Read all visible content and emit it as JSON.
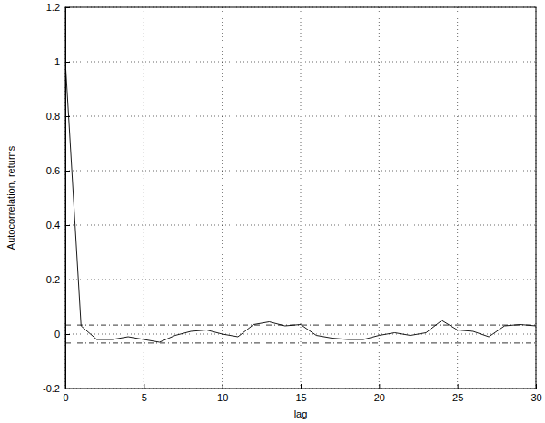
{
  "chart_data": {
    "type": "line",
    "xlabel": "lag",
    "ylabel": "Autocorrelation, returns",
    "x": [
      0,
      1,
      2,
      3,
      4,
      5,
      6,
      7,
      8,
      9,
      10,
      11,
      12,
      13,
      14,
      15,
      16,
      17,
      18,
      19,
      20,
      21,
      22,
      23,
      24,
      25,
      26,
      27,
      28,
      29,
      30
    ],
    "values": [
      1,
      0.03,
      -0.02,
      -0.02,
      -0.01,
      -0.02,
      -0.03,
      -0.005,
      0.01,
      0.015,
      0.0,
      -0.01,
      0.035,
      0.045,
      0.03,
      0.035,
      -0.005,
      -0.015,
      -0.02,
      -0.02,
      -0.005,
      0.005,
      -0.005,
      0.005,
      0.05,
      0.015,
      0.01,
      -0.01,
      0.03,
      0.035,
      0.03
    ],
    "bounds": [
      -0.033,
      0.033
    ],
    "color": "#000000",
    "line_style": "solid",
    "xlim": [
      0,
      30
    ],
    "ylim": [
      -0.2,
      1.2
    ],
    "xticks": [
      0,
      5,
      10,
      15,
      20,
      25,
      30
    ],
    "yticks": [
      -0.2,
      0,
      0.2,
      0.4,
      0.6,
      0.8,
      1,
      1.2
    ],
    "grid": true
  }
}
